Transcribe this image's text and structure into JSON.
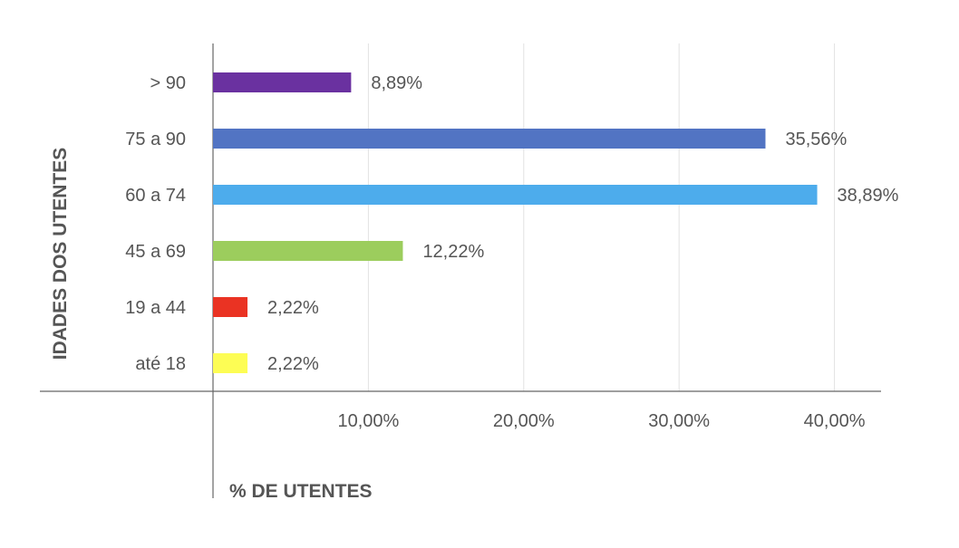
{
  "chart_data": {
    "type": "bar",
    "orientation": "horizontal",
    "ylabel": "IDADES DOS UTENTES",
    "xlabel": "% DE UTENTES",
    "categories": [
      "> 90",
      "75 a 90",
      "60 a 74",
      "45 a 69",
      "19 a 44",
      "até 18"
    ],
    "values": [
      8.89,
      35.56,
      38.89,
      12.22,
      2.22,
      2.22
    ],
    "value_labels": [
      "8,89%",
      "35,56%",
      "38,89%",
      "12,22%",
      "2,22%",
      "2,22%"
    ],
    "colors": [
      "#6a31a0",
      "#5274c3",
      "#4dacec",
      "#9ccd5d",
      "#ea3323",
      "#fdfd54"
    ],
    "xlim": [
      0,
      43
    ],
    "x_ticks": [
      10,
      20,
      30,
      40
    ],
    "x_tick_labels": [
      "10,00%",
      "20,00%",
      "30,00%",
      "40,00%"
    ],
    "grid": "vertical",
    "legend": "none"
  }
}
